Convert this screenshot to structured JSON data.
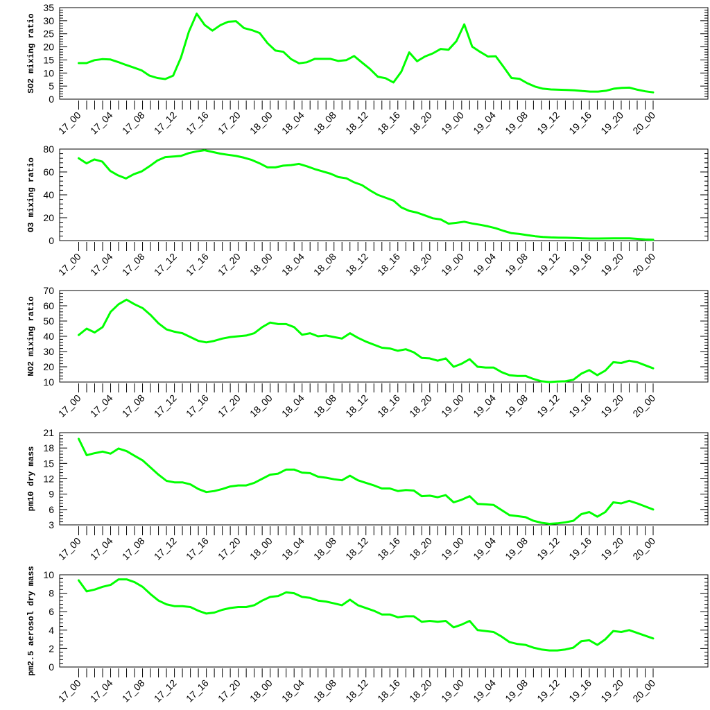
{
  "line_color": "#00ff00",
  "x_tick_labels": [
    "17_00",
    "17_04",
    "17_08",
    "17_12",
    "17_16",
    "17_20",
    "18_00",
    "18_04",
    "18_08",
    "18_12",
    "18_16",
    "18_20",
    "19_00",
    "19_04",
    "19_08",
    "19_12",
    "19_16",
    "19_20",
    "20_00"
  ],
  "chart_data": [
    {
      "type": "line",
      "ylabel": "SO2 mixing ratio",
      "ylim": [
        0,
        35
      ],
      "yticks": [
        0,
        5,
        10,
        15,
        20,
        25,
        30,
        35
      ],
      "x_range_hours": [
        0,
        72
      ],
      "series": [
        {
          "values": [
            13.8,
            13.8,
            14.9,
            15.3,
            15.2,
            14.2,
            13.1,
            12.1,
            11.0,
            9.0,
            8.1,
            7.7,
            9.0,
            15.9,
            25.8,
            32.7,
            28.4,
            26.2,
            28.3,
            29.6,
            29.8,
            27.2,
            26.4,
            25.3,
            21.4,
            18.6,
            18.1,
            15.3,
            13.7,
            14.1,
            15.4,
            15.4,
            15.4,
            14.6,
            14.9,
            16.5,
            14.0,
            11.6,
            8.6,
            8.0,
            6.4,
            10.5,
            17.9,
            14.5,
            16.3,
            17.5,
            19.2,
            18.9,
            22.2,
            28.6,
            20.1,
            18.1,
            16.3,
            16.4,
            12.3,
            8.1,
            7.8,
            6.1,
            4.8,
            4.0,
            3.7,
            3.6,
            3.5,
            3.4,
            3.1,
            2.9,
            2.9,
            3.2,
            4.0,
            4.3,
            4.4,
            3.6,
            3.0,
            2.6
          ]
        }
      ]
    },
    {
      "type": "line",
      "ylabel": "O3 mixing ratio",
      "ylim": [
        0,
        80
      ],
      "yticks": [
        0,
        20,
        40,
        60,
        80
      ],
      "x_range_hours": [
        0,
        72
      ],
      "series": [
        {
          "values": [
            72.0,
            67.5,
            71.0,
            69.0,
            61.0,
            57.0,
            54.3,
            58.0,
            60.5,
            65.0,
            70.0,
            73.0,
            73.5,
            74.0,
            76.5,
            78.0,
            79.0,
            77.5,
            76.0,
            75.0,
            74.0,
            72.5,
            70.5,
            67.5,
            64.0,
            64.0,
            65.5,
            66.0,
            67.0,
            65.0,
            62.5,
            60.5,
            58.5,
            55.5,
            54.5,
            51.0,
            48.5,
            44.0,
            40.0,
            37.5,
            35.0,
            29.0,
            26.0,
            24.5,
            22.0,
            19.5,
            18.5,
            14.8,
            15.5,
            16.5,
            15.0,
            13.8,
            12.5,
            10.8,
            8.5,
            6.5,
            5.8,
            4.8,
            3.8,
            3.2,
            2.8,
            2.6,
            2.5,
            2.3,
            2.0,
            1.8,
            1.8,
            1.9,
            2.0,
            2.0,
            2.0,
            1.5,
            1.0,
            0.7
          ]
        }
      ]
    },
    {
      "type": "line",
      "ylabel": "NO2 mixing ratio",
      "ylim": [
        10,
        70
      ],
      "yticks": [
        10,
        20,
        30,
        40,
        50,
        60,
        70
      ],
      "x_range_hours": [
        0,
        72
      ],
      "series": [
        {
          "values": [
            40.8,
            45.0,
            42.5,
            46.0,
            56.0,
            61.0,
            64.0,
            61.0,
            58.5,
            54.0,
            48.5,
            44.5,
            43.0,
            42.0,
            39.5,
            37.0,
            36.0,
            37.0,
            38.5,
            39.5,
            40.0,
            40.5,
            42.0,
            46.0,
            49.0,
            48.0,
            48.0,
            46.0,
            41.0,
            42.0,
            40.0,
            40.5,
            39.5,
            38.5,
            42.0,
            39.0,
            36.5,
            34.5,
            32.5,
            32.0,
            30.5,
            31.5,
            29.5,
            25.8,
            25.5,
            24.0,
            25.5,
            20.0,
            22.0,
            25.0,
            20.0,
            19.5,
            19.5,
            16.5,
            14.5,
            14.0,
            14.0,
            12.0,
            10.5,
            10.0,
            10.3,
            10.5,
            11.5,
            15.5,
            17.8,
            14.5,
            17.5,
            23.0,
            22.5,
            24.0,
            23.0,
            21.0,
            19.0
          ]
        }
      ]
    },
    {
      "type": "line",
      "ylabel": "pm10 dry mass",
      "ylim": [
        3,
        21
      ],
      "yticks": [
        3,
        6,
        9,
        12,
        15,
        18,
        21
      ],
      "x_range_hours": [
        0,
        72
      ],
      "series": [
        {
          "values": [
            19.8,
            16.6,
            17.0,
            17.3,
            16.9,
            17.9,
            17.4,
            16.5,
            15.6,
            14.2,
            12.8,
            11.6,
            11.3,
            11.3,
            10.9,
            10.0,
            9.4,
            9.6,
            10.0,
            10.5,
            10.7,
            10.7,
            11.2,
            12.0,
            12.8,
            13.0,
            13.8,
            13.8,
            13.2,
            13.1,
            12.4,
            12.2,
            11.9,
            11.7,
            12.6,
            11.7,
            11.2,
            10.7,
            10.1,
            10.1,
            9.6,
            9.8,
            9.7,
            8.6,
            8.7,
            8.4,
            8.8,
            7.4,
            7.9,
            8.6,
            7.1,
            7.0,
            6.9,
            5.9,
            4.9,
            4.7,
            4.5,
            3.8,
            3.4,
            3.2,
            3.3,
            3.5,
            3.8,
            5.1,
            5.5,
            4.6,
            5.5,
            7.4,
            7.2,
            7.7,
            7.2,
            6.6,
            6.0
          ]
        }
      ]
    },
    {
      "type": "line",
      "ylabel": "pm2.5 aerosol dry mass",
      "ylim": [
        0,
        10
      ],
      "yticks": [
        0,
        2,
        4,
        6,
        8,
        10
      ],
      "x_range_hours": [
        0,
        72
      ],
      "series": [
        {
          "values": [
            9.4,
            8.2,
            8.4,
            8.7,
            8.9,
            9.5,
            9.5,
            9.2,
            8.7,
            7.9,
            7.2,
            6.8,
            6.6,
            6.6,
            6.5,
            6.1,
            5.8,
            5.9,
            6.2,
            6.4,
            6.5,
            6.5,
            6.7,
            7.2,
            7.6,
            7.7,
            8.1,
            8.0,
            7.6,
            7.5,
            7.2,
            7.1,
            6.9,
            6.7,
            7.3,
            6.7,
            6.4,
            6.1,
            5.7,
            5.7,
            5.4,
            5.5,
            5.5,
            4.9,
            5.0,
            4.9,
            5.0,
            4.3,
            4.6,
            5.0,
            4.0,
            3.9,
            3.8,
            3.3,
            2.7,
            2.5,
            2.4,
            2.1,
            1.9,
            1.8,
            1.8,
            1.9,
            2.1,
            2.8,
            2.9,
            2.4,
            3.0,
            3.9,
            3.8,
            4.0,
            3.7,
            3.4,
            3.1
          ]
        }
      ]
    }
  ]
}
